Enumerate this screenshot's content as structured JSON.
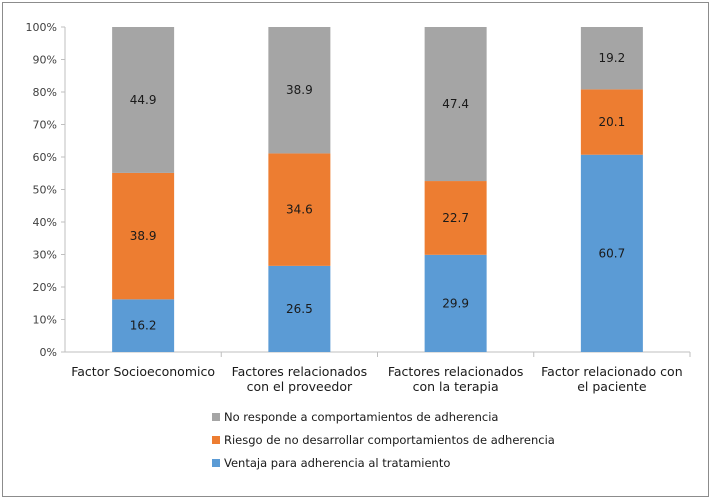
{
  "chart_data": {
    "type": "bar",
    "stacked": true,
    "percent": true,
    "categories": [
      [
        "Factor Socioeconomico"
      ],
      [
        "Factores relacionados",
        "con el proveedor"
      ],
      [
        "Factores relacionados",
        "con la terapia"
      ],
      [
        "Factor relacionado con",
        "el paciente"
      ]
    ],
    "series": [
      {
        "name": "Ventaja para adherencia al tratamiento",
        "color": "#5b9bd5",
        "values": [
          16.2,
          26.5,
          29.9,
          60.7
        ]
      },
      {
        "name": "Riesgo de no desarrollar comportamientos de adherencia",
        "color": "#ed7d31",
        "values": [
          38.9,
          34.6,
          22.7,
          20.1
        ]
      },
      {
        "name": "No responde a comportamientos de adherencia",
        "color": "#a5a5a5",
        "values": [
          44.9,
          38.9,
          47.4,
          19.2
        ]
      }
    ],
    "yticks": [
      "0%",
      "10%",
      "20%",
      "30%",
      "40%",
      "50%",
      "60%",
      "70%",
      "80%",
      "90%",
      "100%"
    ],
    "ylim": [
      0,
      100
    ],
    "grid": false,
    "legend_position": "bottom",
    "legend_order": [
      2,
      1,
      0
    ]
  }
}
